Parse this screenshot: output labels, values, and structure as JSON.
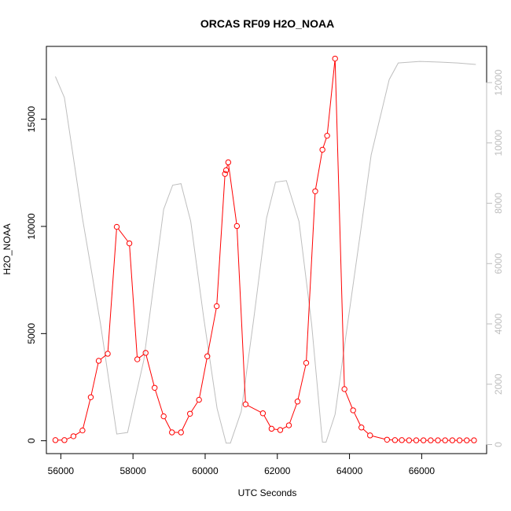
{
  "chart_data": {
    "type": "line",
    "title": "ORCAS RF09 H2O_NOAA",
    "xlabel": "UTC Seconds",
    "ylabel": "H2O_NOAA",
    "xlim": [
      55600,
      67800
    ],
    "ylim": [
      -600,
      18400
    ],
    "y2lim": [
      -300,
      13200
    ],
    "x_ticks": [
      56000,
      58000,
      60000,
      62000,
      64000,
      66000
    ],
    "x_tick_labels": [
      "56000",
      "58000",
      "60000",
      "62000",
      "64000",
      "66000"
    ],
    "y_ticks": [
      0,
      5000,
      10000,
      15000
    ],
    "y_tick_labels": [
      "0",
      "5000",
      "10000",
      "15000"
    ],
    "y2_ticks": [
      0,
      2000,
      4000,
      6000,
      8000,
      10000,
      12000
    ],
    "y2_tick_labels": [
      "0",
      "2000",
      "4000",
      "6000",
      "8000",
      "10000",
      "12000"
    ],
    "grid": false,
    "colors": {
      "primary": "#ff0000",
      "secondary": "#bebebe",
      "axis": "#000000"
    },
    "series": [
      {
        "axis": "left",
        "color": "#ff0000",
        "marker": "open-circle",
        "x": [
          55850,
          56100,
          56350,
          56600,
          56830,
          57050,
          57300,
          57550,
          57900,
          58120,
          58350,
          58600,
          58850,
          59080,
          59330,
          59580,
          59830,
          60060,
          60320,
          60550,
          60580,
          60640,
          60880,
          61120,
          61600,
          61840,
          62080,
          62320,
          62560,
          62800,
          63050,
          63250,
          63380,
          63600,
          63860,
          64100,
          64330,
          64570,
          65040,
          65260,
          65450,
          65650,
          65850,
          66050,
          66250,
          66450,
          66650,
          66850,
          67050,
          67250,
          67450
        ],
        "y": [
          30,
          30,
          210,
          480,
          2030,
          3730,
          4060,
          9980,
          9210,
          3800,
          4100,
          2470,
          1140,
          390,
          390,
          1260,
          1910,
          3940,
          6280,
          12450,
          12620,
          12990,
          10020,
          1700,
          1280,
          560,
          500,
          720,
          1830,
          3630,
          11640,
          13580,
          14230,
          17830,
          2410,
          1420,
          620,
          250,
          50,
          30,
          30,
          20,
          20,
          20,
          20,
          20,
          20,
          20,
          20,
          20,
          20
        ]
      },
      {
        "axis": "right",
        "color": "#bebebe",
        "marker": "none",
        "x": [
          55850,
          56100,
          56600,
          57100,
          57550,
          57850,
          58300,
          58850,
          59100,
          59330,
          59600,
          59960,
          60330,
          60580,
          60700,
          61000,
          61350,
          61700,
          61950,
          62250,
          62600,
          62950,
          63250,
          63350,
          63600,
          63900,
          64300,
          64600,
          65100,
          65350,
          65950,
          66500,
          67000,
          67500
        ],
        "y": [
          12200,
          11500,
          7500,
          4000,
          350,
          400,
          2800,
          7800,
          8600,
          8650,
          7400,
          4200,
          1200,
          50,
          50,
          1100,
          4200,
          7500,
          8700,
          8750,
          7400,
          4000,
          80,
          80,
          1000,
          3600,
          7000,
          9600,
          12100,
          12650,
          12700,
          12680,
          12650,
          12600
        ]
      }
    ]
  }
}
